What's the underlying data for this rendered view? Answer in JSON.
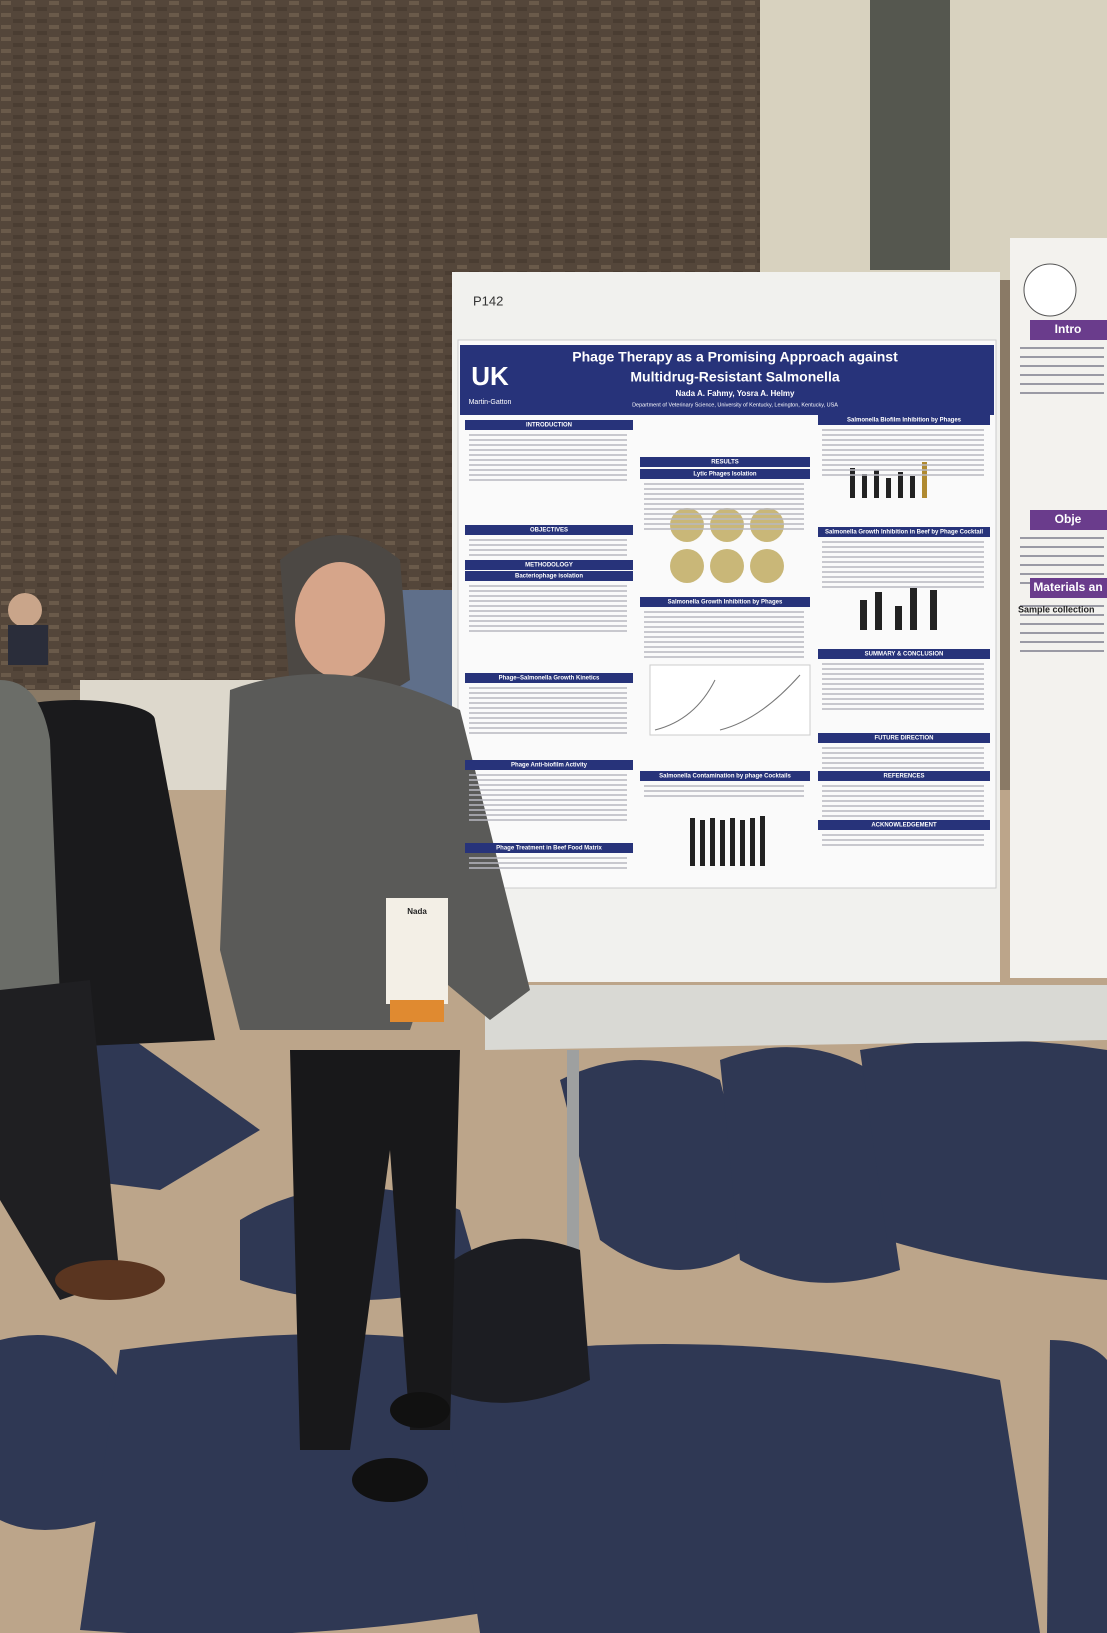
{
  "poster": {
    "number": "P142",
    "logo": "UK",
    "college": "Martin-Gatton",
    "title_lines": [
      "Phage Therapy as a Promising Approach against",
      "Multidrug-Resistant Salmonella"
    ],
    "authors": "Nada A. Fahmy, Yosra A. Helmy",
    "affiliation": "Department of Veterinary Science, University of Kentucky, Lexington, Kentucky, USA",
    "left_column": [
      "INTRODUCTION",
      "OBJECTIVES",
      "METHODOLOGY",
      "Bacteriophage isolation",
      "Phage–Salmonella Growth Kinetics",
      "Phage Anti-biofilm Activity",
      "Phage Treatment in Beef Food Matrix"
    ],
    "center_column": [
      "RESULTS",
      "Lytic Phages Isolation",
      "Salmonella Growth Inhibition by Phages",
      "Salmonella Contamination by phage Cocktails"
    ],
    "right_column": [
      "Salmonella Biofilm Inhibition by Phages",
      "Salmonella Growth Inhibition in Beef by Phage Cocktail",
      "SUMMARY & CONCLUSION",
      "FUTURE DIRECTION",
      "REFERENCES",
      "ACKNOWLEDGEMENT"
    ]
  },
  "badge": {
    "name": "Nada"
  },
  "adjacent_poster": {
    "headings": [
      "Intro",
      "Obje",
      "Materials an"
    ],
    "subheading": "Sample collection"
  }
}
